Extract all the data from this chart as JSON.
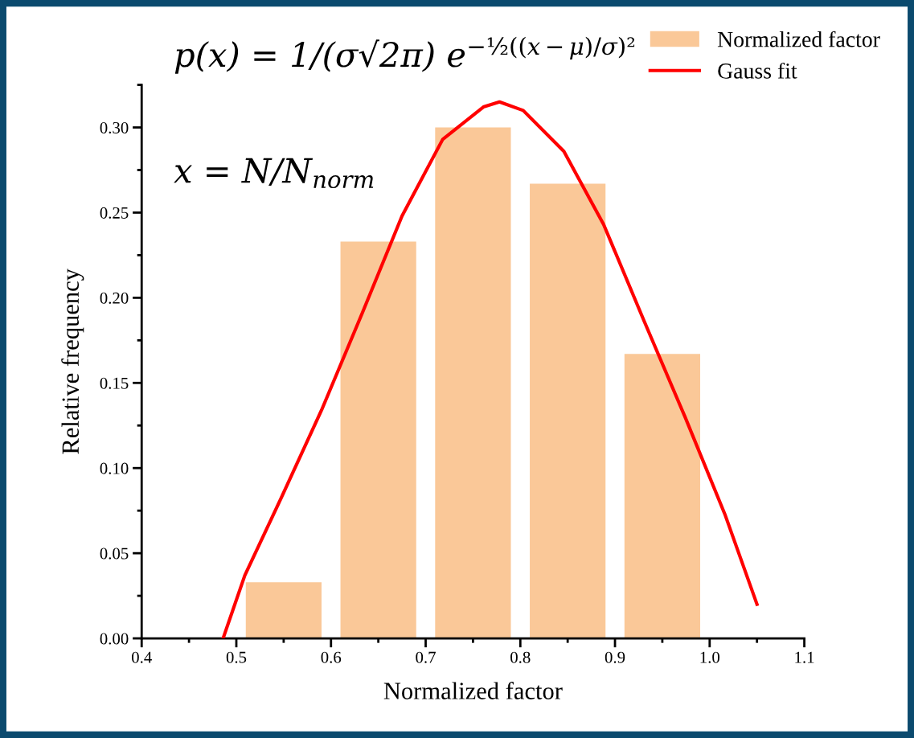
{
  "chart_data": {
    "type": "histogram",
    "xlabel": "Normalized factor",
    "ylabel": "Relative frequency",
    "bins": [
      0.5,
      0.6,
      0.7,
      0.8,
      0.9,
      1.0
    ],
    "series": [
      {
        "name": "Normalized factor",
        "color": "#fac898",
        "values": [
          0.033,
          0.233,
          0.3,
          0.267,
          0.167
        ]
      },
      {
        "type": "line",
        "name": "Gauss fit",
        "color": "#ff0000",
        "x": [
          0.486,
          0.509,
          0.547,
          0.59,
          0.633,
          0.675,
          0.718,
          0.761,
          0.778,
          0.803,
          0.846,
          0.888,
          0.931,
          0.974,
          1.016,
          1.05
        ],
        "values": [
          0.0,
          0.037,
          0.082,
          0.134,
          0.191,
          0.248,
          0.293,
          0.312,
          0.315,
          0.31,
          0.286,
          0.243,
          0.186,
          0.13,
          0.073,
          0.02
        ]
      }
    ],
    "xlim": [
      0.4,
      1.1
    ],
    "xticks": [
      {
        "value": 0.4,
        "label": "0.4"
      },
      {
        "value": 0.5,
        "label": "0.5"
      },
      {
        "value": 0.6,
        "label": "0.6"
      },
      {
        "value": 0.7,
        "label": "0.7"
      },
      {
        "value": 0.8,
        "label": "0.8"
      },
      {
        "value": 0.9,
        "label": "0.9"
      },
      {
        "value": 1.0,
        "label": "1.0"
      },
      {
        "value": 1.1,
        "label": "1.1"
      }
    ],
    "ylim": [
      0,
      0.325
    ],
    "yticks": [
      {
        "value": 0,
        "label": "0.00"
      },
      {
        "value": 0.05,
        "label": "0.05"
      },
      {
        "value": 0.1,
        "label": "0.10"
      },
      {
        "value": 0.15,
        "label": "0.15"
      },
      {
        "value": 0.2,
        "label": "0.20"
      },
      {
        "value": 0.25,
        "label": "0.25"
      },
      {
        "value": 0.3,
        "label": "0.30"
      }
    ],
    "annotations": [
      "p(x) = 1/(σ√2π) e$^{−½((x−μ)/σ)²}$",
      "x = N/N$_{norm}$"
    ],
    "legend": "top right",
    "grid": false
  }
}
